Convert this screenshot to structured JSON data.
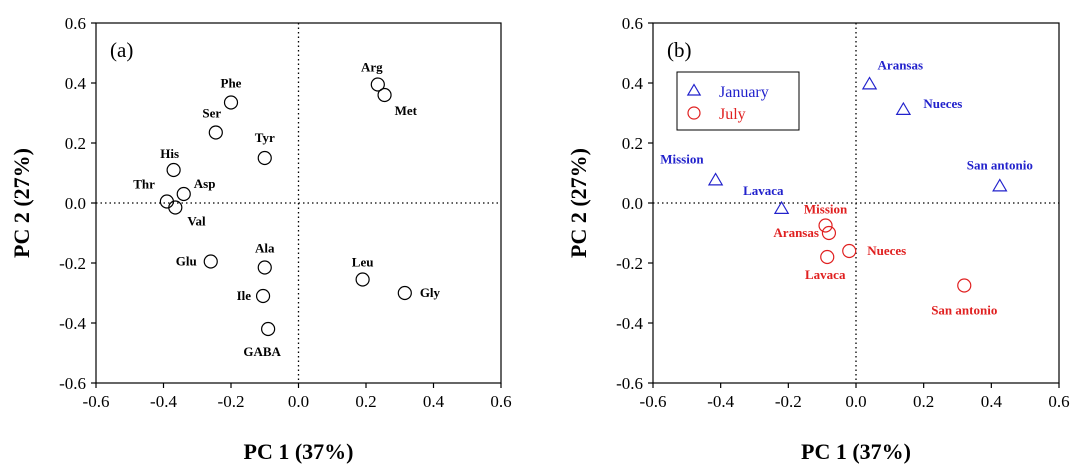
{
  "chart_data": [
    {
      "type": "scatter",
      "panel_label": "(a)",
      "xlabel": "PC 1 (37%)",
      "ylabel": "PC 2 (27%)",
      "xlim": [
        -0.6,
        0.6
      ],
      "ylim": [
        -0.6,
        0.6
      ],
      "xticks": [
        "-0.6",
        "-0.4",
        "-0.2",
        "0.0",
        "0.2",
        "0.4",
        "0.6"
      ],
      "yticks": [
        "-0.6",
        "-0.4",
        "-0.2",
        "0.0",
        "0.2",
        "0.4",
        "0.6"
      ],
      "reference_lines": {
        "x": 0,
        "y": 0,
        "style": "dotted"
      },
      "grid": false,
      "series": [
        {
          "marker": "circle",
          "color": "#000000",
          "points": [
            {
              "label": "Arg",
              "x": 0.235,
              "y": 0.395
            },
            {
              "label": "Met",
              "x": 0.255,
              "y": 0.36
            },
            {
              "label": "Phe",
              "x": -0.2,
              "y": 0.335
            },
            {
              "label": "Ser",
              "x": -0.245,
              "y": 0.235
            },
            {
              "label": "Tyr",
              "x": -0.1,
              "y": 0.15
            },
            {
              "label": "His",
              "x": -0.37,
              "y": 0.11
            },
            {
              "label": "Asp",
              "x": -0.34,
              "y": 0.03
            },
            {
              "label": "Thr",
              "x": -0.39,
              "y": 0.005
            },
            {
              "label": "Val",
              "x": -0.365,
              "y": -0.015
            },
            {
              "label": "Glu",
              "x": -0.26,
              "y": -0.195
            },
            {
              "label": "Ala",
              "x": -0.1,
              "y": -0.215
            },
            {
              "label": "Ile",
              "x": -0.105,
              "y": -0.31
            },
            {
              "label": "GABA",
              "x": -0.09,
              "y": -0.42
            },
            {
              "label": "Leu",
              "x": 0.19,
              "y": -0.255
            },
            {
              "label": "Gly",
              "x": 0.315,
              "y": -0.3
            }
          ]
        }
      ]
    },
    {
      "type": "scatter",
      "panel_label": "(b)",
      "xlabel": "PC 1 (37%)",
      "ylabel": "PC 2 (27%)",
      "xlim": [
        -0.6,
        0.6
      ],
      "ylim": [
        -0.6,
        0.6
      ],
      "xticks": [
        "-0.6",
        "-0.4",
        "-0.2",
        "0.0",
        "0.2",
        "0.4",
        "0.6"
      ],
      "yticks": [
        "-0.6",
        "-0.4",
        "-0.2",
        "0.0",
        "0.2",
        "0.4",
        "0.6"
      ],
      "reference_lines": {
        "x": 0,
        "y": 0,
        "style": "dotted"
      },
      "grid": false,
      "legend": {
        "position": "top-left"
      },
      "series": [
        {
          "name": "January",
          "marker": "triangle",
          "color": "#2222cc",
          "points": [
            {
              "label": "Aransas",
              "x": 0.04,
              "y": 0.395
            },
            {
              "label": "Nueces",
              "x": 0.14,
              "y": 0.31
            },
            {
              "label": "Mission",
              "x": -0.415,
              "y": 0.075
            },
            {
              "label": "Lavaca",
              "x": -0.22,
              "y": -0.02
            },
            {
              "label": "San antonio",
              "x": 0.425,
              "y": 0.055
            }
          ]
        },
        {
          "name": "July",
          "marker": "circle",
          "color": "#e02020",
          "points": [
            {
              "label": "Mission",
              "x": -0.09,
              "y": -0.075
            },
            {
              "label": "Aransas",
              "x": -0.08,
              "y": -0.1
            },
            {
              "label": "Nueces",
              "x": -0.02,
              "y": -0.16
            },
            {
              "label": "Lavaca",
              "x": -0.085,
              "y": -0.18
            },
            {
              "label": "San antonio",
              "x": 0.32,
              "y": -0.275
            }
          ]
        }
      ]
    }
  ]
}
